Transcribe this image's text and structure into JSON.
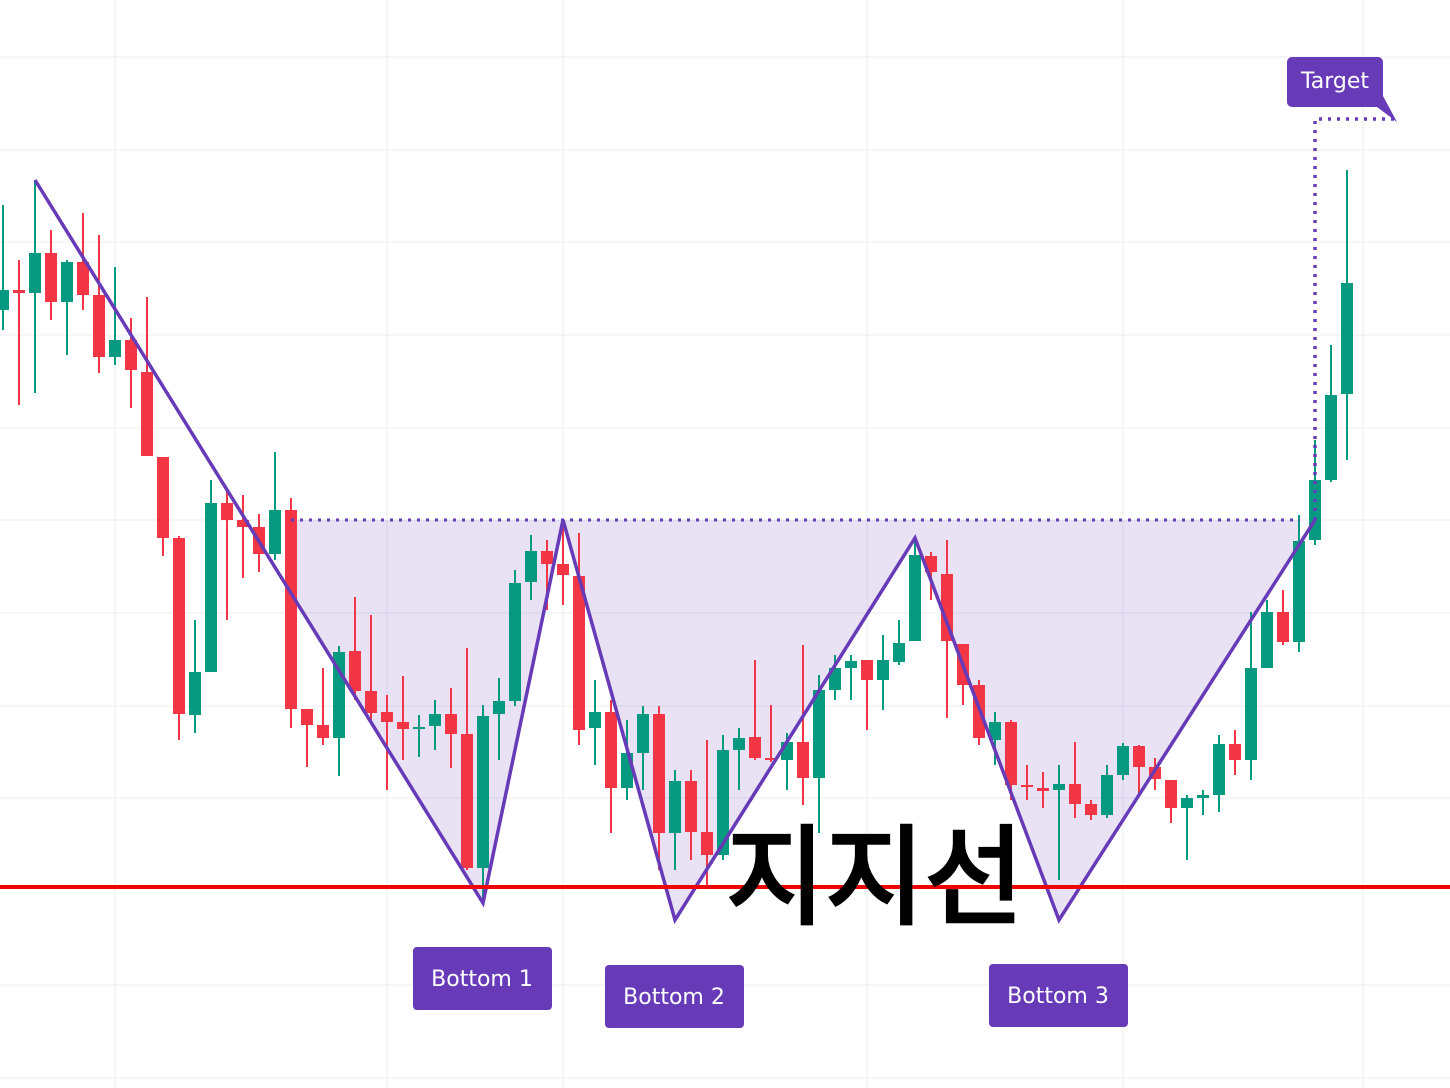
{
  "chart_data": {
    "type": "candlestick",
    "up_color": "#089981",
    "down_color": "#f23645",
    "ylim": [
      0,
      1088
    ],
    "grid": true,
    "open": [
      778,
      798,
      795,
      835,
      786,
      826,
      793,
      731,
      748,
      716,
      631,
      550,
      373,
      416,
      585,
      568,
      561,
      534,
      578,
      379,
      363,
      350,
      437,
      397,
      376,
      366,
      359,
      362,
      374,
      354,
      220,
      374,
      387,
      506,
      537,
      524,
      512,
      360,
      376,
      300,
      335,
      374,
      255,
      307,
      256,
      233,
      338,
      351,
      330,
      328,
      346,
      310,
      398,
      420,
      428,
      408,
      426,
      447,
      532,
      514,
      444,
      403,
      348,
      366,
      303,
      300,
      298,
      304,
      284,
      273,
      313,
      342,
      321,
      308,
      280,
      290,
      293,
      344,
      328,
      420,
      476,
      446,
      548,
      608,
      694
    ],
    "high": [
      883,
      828,
      908,
      858,
      828,
      875,
      853,
      821,
      770,
      791,
      631,
      552,
      468,
      608,
      598,
      593,
      574,
      636,
      590,
      379,
      420,
      442,
      491,
      473,
      393,
      412,
      373,
      388,
      400,
      440,
      383,
      410,
      518,
      553,
      548,
      566,
      555,
      408,
      388,
      368,
      382,
      382,
      318,
      318,
      348,
      353,
      360,
      428,
      383,
      355,
      443,
      413,
      433,
      433,
      428,
      453,
      468,
      548,
      536,
      548,
      444,
      408,
      376,
      368,
      323,
      316,
      323,
      346,
      288,
      323,
      345,
      343,
      330,
      308,
      293,
      298,
      353,
      358,
      476,
      488,
      498,
      573,
      648,
      743,
      918
    ],
    "low": [
      758,
      683,
      695,
      768,
      733,
      778,
      715,
      723,
      680,
      632,
      532,
      348,
      355,
      416,
      468,
      510,
      516,
      528,
      360,
      321,
      343,
      312,
      388,
      364,
      298,
      328,
      331,
      338,
      320,
      218,
      188,
      328,
      382,
      488,
      478,
      483,
      343,
      323,
      255,
      288,
      298,
      218,
      218,
      228,
      203,
      228,
      298,
      328,
      326,
      298,
      283,
      255,
      388,
      388,
      358,
      378,
      423,
      447,
      488,
      370,
      383,
      343,
      323,
      288,
      288,
      280,
      208,
      270,
      268,
      270,
      308,
      293,
      298,
      265,
      228,
      273,
      276,
      313,
      308,
      420,
      443,
      436,
      543,
      606,
      628
    ],
    "close": [
      798,
      795,
      835,
      786,
      826,
      793,
      731,
      748,
      718,
      632,
      550,
      374,
      416,
      585,
      568,
      561,
      534,
      578,
      379,
      363,
      350,
      436,
      397,
      375,
      366,
      359,
      361,
      374,
      354,
      220,
      372,
      387,
      505,
      537,
      524,
      513,
      358,
      376,
      300,
      335,
      374,
      255,
      307,
      256,
      233,
      338,
      350,
      330,
      328,
      346,
      310,
      398,
      420,
      427,
      408,
      428,
      445,
      533,
      516,
      447,
      403,
      350,
      366,
      303,
      301,
      297,
      304,
      284,
      273,
      313,
      342,
      321,
      309,
      280,
      290,
      293,
      344,
      328,
      420,
      476,
      446,
      547,
      608,
      693,
      805
    ],
    "annotations": {
      "target": "Target",
      "bottoms": [
        "Bottom 1",
        "Bottom 2",
        "Bottom 3"
      ],
      "support": "지지선"
    }
  }
}
